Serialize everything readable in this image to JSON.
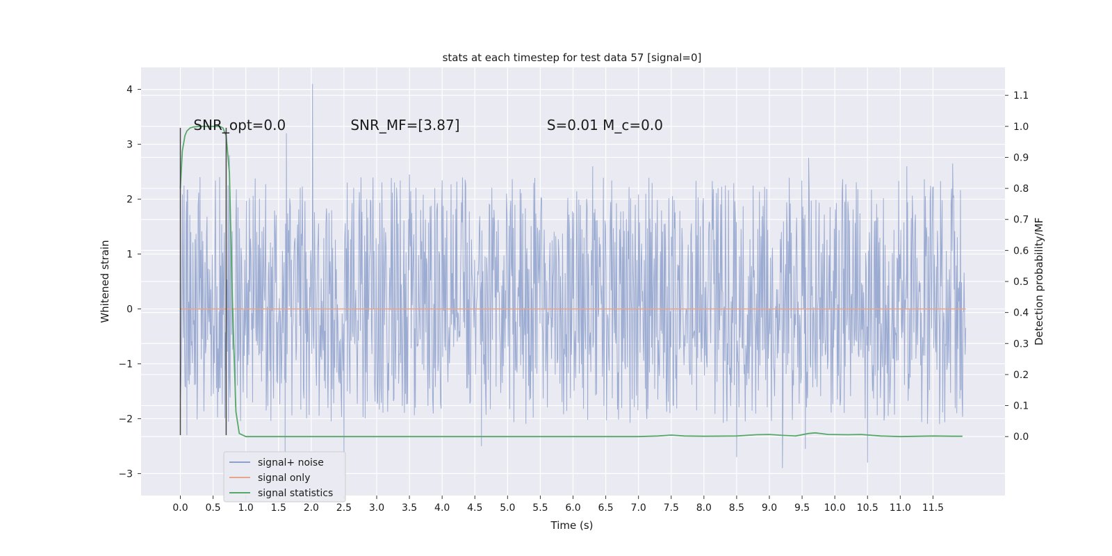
{
  "chart_data": {
    "type": "line",
    "title": "stats at each timestep for test data 57 [signal=0]",
    "xlabel": "Time (s)",
    "ylabel": "Whitened strain",
    "y2label": "Detection probability/MF",
    "xlim": [
      -0.6,
      12.6
    ],
    "ylim": [
      -3.4,
      4.4
    ],
    "y2lim": [
      -0.19,
      1.19
    ],
    "xticks": [
      0.0,
      0.5,
      1.0,
      1.5,
      2.0,
      2.5,
      3.0,
      3.5,
      4.0,
      4.5,
      5.0,
      5.5,
      6.0,
      6.5,
      7.0,
      7.5,
      8.0,
      8.5,
      9.0,
      9.5,
      10.0,
      10.5,
      11.0,
      11.5
    ],
    "xtick_labels": [
      "0.0",
      "0.5",
      "1.0",
      "1.5",
      "2.0",
      "2.5",
      "3.0",
      "3.5",
      "4.0",
      "4.5",
      "5.0",
      "5.5",
      "6.0",
      "6.5",
      "7.0",
      "7.5",
      "8.0",
      "8.5",
      "9.0",
      "9.5",
      "10.0",
      "10.5",
      "11.0",
      "11.5"
    ],
    "yticks": [
      -3,
      -2,
      -1,
      0,
      1,
      2,
      3,
      4
    ],
    "ytick_labels": [
      "−3",
      "−2",
      "−1",
      "0",
      "1",
      "2",
      "3",
      "4"
    ],
    "y2ticks": [
      0.0,
      0.1,
      0.2,
      0.3,
      0.4,
      0.5,
      0.6,
      0.7,
      0.8,
      0.9,
      1.0,
      1.1
    ],
    "y2tick_labels": [
      "0.0",
      "0.1",
      "0.2",
      "0.3",
      "0.4",
      "0.5",
      "0.6",
      "0.7",
      "0.8",
      "0.9",
      "1.0",
      "1.1"
    ],
    "grid": true,
    "legend_placement": "lower-left",
    "annotations": [
      {
        "text": "SNR_opt=0.0",
        "x": 0.2,
        "y": 3.35
      },
      {
        "text": "SNR_MF=[3.87]",
        "x": 2.6,
        "y": 3.35
      },
      {
        "text": "S=0.01   M_c=0.0",
        "x": 5.6,
        "y": 3.35
      }
    ],
    "vertical_markers": [
      {
        "x": 0.0,
        "y_range": [
          -2.3,
          3.3
        ]
      },
      {
        "x": 0.7,
        "y_range": [
          -2.3,
          3.3
        ]
      }
    ],
    "series": [
      {
        "name": "signal+ noise",
        "color": "#8da0cb",
        "kind": "noise",
        "x_range": [
          0.0,
          12.0
        ],
        "band": [
          -1.2,
          1.6
        ],
        "peaks": [
          {
            "x": 0.3,
            "y": 2.4
          },
          {
            "x": 0.6,
            "y": 2.4
          },
          {
            "x": 0.75,
            "y": 2.8
          },
          {
            "x": 1.62,
            "y": 3.2
          },
          {
            "x": 2.02,
            "y": 4.1
          },
          {
            "x": 2.55,
            "y": 2.3
          },
          {
            "x": 3.5,
            "y": 2.45
          },
          {
            "x": 6.3,
            "y": 2.6
          },
          {
            "x": 9.6,
            "y": 2.75
          },
          {
            "x": 11.1,
            "y": 2.6
          },
          {
            "x": 11.8,
            "y": 2.65
          }
        ],
        "troughs": [
          {
            "x": 0.1,
            "y": -2.3
          },
          {
            "x": 1.6,
            "y": -2.7
          },
          {
            "x": 2.5,
            "y": -3.05
          },
          {
            "x": 4.6,
            "y": -2.5
          },
          {
            "x": 8.5,
            "y": -2.7
          },
          {
            "x": 9.2,
            "y": -2.9
          },
          {
            "x": 9.55,
            "y": -2.55
          },
          {
            "x": 10.5,
            "y": -2.8
          },
          {
            "x": 11.6,
            "y": -2.1
          }
        ]
      },
      {
        "name": "signal only",
        "color": "#e8a48c",
        "kind": "line",
        "axis": "left",
        "x": [
          0.0,
          12.0
        ],
        "values": [
          0.0,
          0.0
        ]
      },
      {
        "name": "signal statistics",
        "color": "#55a868",
        "kind": "line",
        "axis": "right",
        "x": [
          0.0,
          0.03,
          0.07,
          0.1,
          0.15,
          0.2,
          0.3,
          0.4,
          0.5,
          0.6,
          0.65,
          0.7,
          0.75,
          0.8,
          0.85,
          0.9,
          1.0,
          2.0,
          3.0,
          4.0,
          5.0,
          6.0,
          7.0,
          7.3,
          7.5,
          7.7,
          8.0,
          8.5,
          8.8,
          9.0,
          9.2,
          9.4,
          9.6,
          9.7,
          9.9,
          10.2,
          10.4,
          10.7,
          11.0,
          11.5,
          11.8,
          11.95
        ],
        "values": [
          0.8,
          0.92,
          0.97,
          0.985,
          0.995,
          0.998,
          1.0,
          1.0,
          1.0,
          1.0,
          0.995,
          0.97,
          0.85,
          0.4,
          0.08,
          0.01,
          0.0,
          0.0,
          0.0,
          0.0,
          0.0,
          0.0,
          0.0,
          0.002,
          0.005,
          0.002,
          0.001,
          0.002,
          0.006,
          0.007,
          0.004,
          0.002,
          0.01,
          0.012,
          0.007,
          0.006,
          0.007,
          0.002,
          0.0,
          0.002,
          0.001,
          0.001
        ]
      }
    ]
  }
}
